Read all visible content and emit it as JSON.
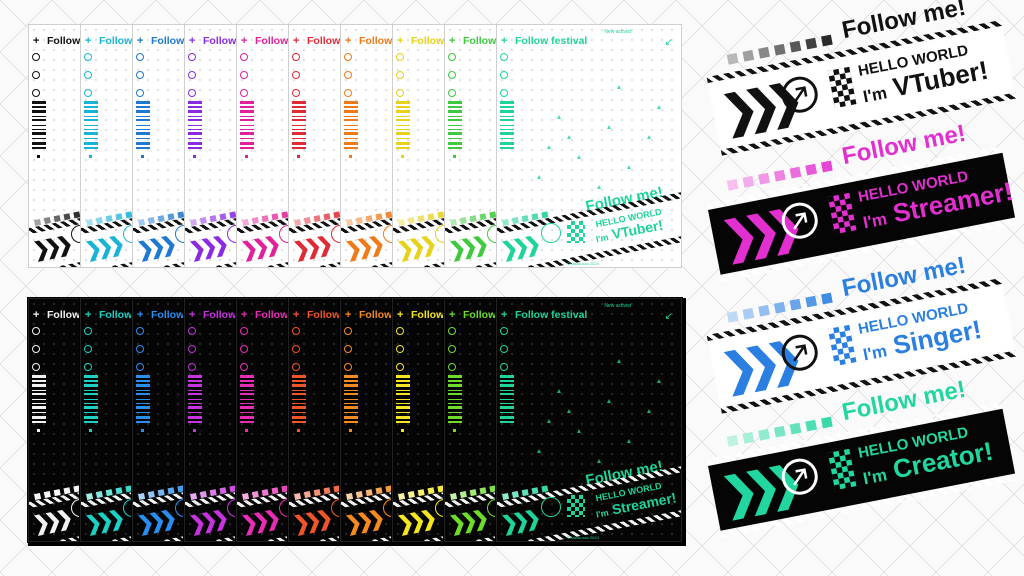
{
  "light_set": {
    "cards": [
      {
        "title": "Follow",
        "color": "#111111"
      },
      {
        "title": "Follow",
        "color": "#19b3d6"
      },
      {
        "title": "Follow",
        "color": "#1f78d1"
      },
      {
        "title": "Follow",
        "color": "#8a2be2"
      },
      {
        "title": "Follow",
        "color": "#e0219b"
      },
      {
        "title": "Follow",
        "color": "#e02a36"
      },
      {
        "title": "Follow",
        "color": "#f07a17"
      },
      {
        "title": "Follow",
        "color": "#e6d21a"
      },
      {
        "title": "Follow",
        "color": "#3fc93f"
      }
    ],
    "front": {
      "title": "Follow festival",
      "header_note": "New activist",
      "corner_arrow": "↙",
      "big_follow": "Follow me!",
      "hello": "HELLO WORLD",
      "im_prefix": "I'm",
      "role": "VTuber!",
      "footer": "©Sakuu.sao 2024",
      "color": "#1fd39b"
    }
  },
  "dark_set": {
    "cards": [
      {
        "title": "Follow",
        "color": "#f2f2f2"
      },
      {
        "title": "Follow",
        "color": "#1ad1c4"
      },
      {
        "title": "Follow",
        "color": "#2a8df0"
      },
      {
        "title": "Follow",
        "color": "#c733e0"
      },
      {
        "title": "Follow",
        "color": "#e82cb5"
      },
      {
        "title": "Follow",
        "color": "#f0552a"
      },
      {
        "title": "Follow",
        "color": "#f58a1f"
      },
      {
        "title": "Follow",
        "color": "#f5e61f"
      },
      {
        "title": "Follow",
        "color": "#6ddd2a"
      }
    ],
    "front": {
      "title": "Follow festival",
      "header_note": "New activist",
      "corner_arrow": "↙",
      "big_follow": "Follow me!",
      "hello": "HELLO WORLD",
      "im_prefix": "I'm",
      "role": "Streamer!",
      "footer": "©Sakuu.sao 2024",
      "color": "#1fd39b"
    }
  },
  "banners": [
    {
      "follow": "Follow me!",
      "hello": "HELLO WORLD",
      "im_prefix": "I'm",
      "role": "VTuber!",
      "accent": "#111111",
      "text": "#111111",
      "bg": "#ffffff",
      "dark": false
    },
    {
      "follow": "Follow me!",
      "hello": "HELLO WORLD",
      "im_prefix": "I'm",
      "role": "Streamer!",
      "accent": "#e22fd0",
      "text": "#e22fd0",
      "bg": "#050505",
      "dark": true
    },
    {
      "follow": "Follow me!",
      "hello": "HELLO WORLD",
      "im_prefix": "I'm",
      "role": "Singer!",
      "accent": "#2a7fe0",
      "text": "#2a7fe0",
      "bg": "#ffffff",
      "dark": false
    },
    {
      "follow": "Follow me!",
      "hello": "HELLO WORLD",
      "im_prefix": "I'm",
      "role": "Creator!",
      "accent": "#22d6a0",
      "text": "#22d6a0",
      "bg": "#050505",
      "dark": true
    }
  ],
  "icons": {
    "plus": "plus-icon",
    "chevrons": "triple-chevron-icon",
    "arrow": "arrow-up-right-circle-icon",
    "checker": "checkerboard-icon",
    "barcode": "barcode-icon"
  }
}
